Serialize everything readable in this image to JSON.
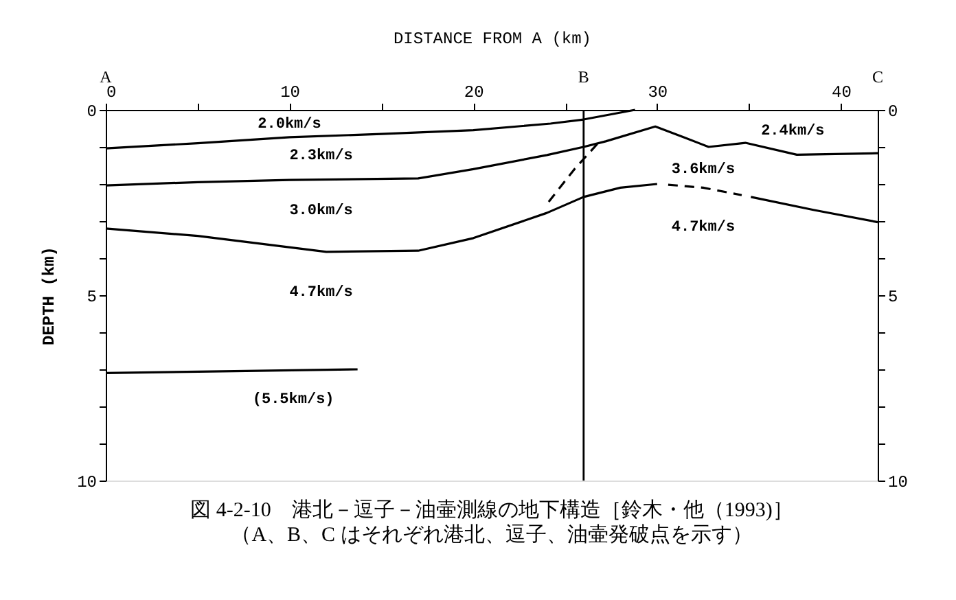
{
  "chart_data": {
    "type": "line",
    "title": "図 4-2-10　港北－逗子－油壷測線の地下構造［鈴木・他（1993)］",
    "subtitle": "（A、B、C はそれぞれ港北、逗子、油壷発破点を示す）",
    "xlabel": "DISTANCE FROM A (km)",
    "ylabel": "DEPTH (km)",
    "xlim": [
      0,
      42
    ],
    "xticks": [
      0,
      {
        "value": 5,
        "label": null
      },
      10,
      {
        "value": 15,
        "label": null
      },
      20,
      {
        "value": 25,
        "label": null
      },
      30,
      {
        "value": 35,
        "label": null
      },
      40
    ],
    "ylim": [
      10,
      0
    ],
    "yticks": [
      0,
      {
        "value": 1,
        "label": null
      },
      {
        "value": 2,
        "label": null
      },
      {
        "value": 3,
        "label": null
      },
      {
        "value": 4,
        "label": null
      },
      5,
      {
        "value": 6,
        "label": null
      },
      {
        "value": 7,
        "label": null
      },
      {
        "value": 8,
        "label": null
      },
      {
        "value": 9,
        "label": null
      },
      10
    ],
    "y2lim": [
      10,
      0
    ],
    "y2ticks": [
      0,
      {
        "value": 1,
        "label": null
      },
      {
        "value": 2,
        "label": null
      },
      {
        "value": 3,
        "label": null
      },
      {
        "value": 4,
        "label": null
      },
      5,
      {
        "value": 6,
        "label": null
      },
      {
        "value": 7,
        "label": null
      },
      {
        "value": 8,
        "label": null
      },
      {
        "value": 9,
        "label": null
      },
      10
    ],
    "grid": false,
    "marker": "none",
    "series": [
      {
        "color": "#000000",
        "line_style": "solid",
        "x": [
          0,
          5,
          10,
          15,
          20,
          24.2,
          26,
          28.8
        ],
        "values": [
          1.04,
          0.9,
          0.74,
          0.65,
          0.55,
          0.37,
          0.26,
          0
        ]
      },
      {
        "color": "#000000",
        "line_style": "solid",
        "x": [
          0,
          5,
          10,
          17,
          20,
          24,
          26,
          27.2,
          29.9,
          31.5,
          32.8,
          34.8,
          37.6,
          42
        ],
        "values": [
          2.04,
          1.95,
          1.89,
          1.85,
          1.6,
          1.22,
          1.0,
          0.85,
          0.45,
          0.75,
          1.0,
          0.89,
          1.21,
          1.17
        ]
      },
      {
        "color": "#000000",
        "line_style": "solid",
        "x": [
          0,
          5,
          12,
          17,
          20,
          24,
          26,
          28,
          30
        ],
        "values": [
          3.2,
          3.4,
          3.83,
          3.8,
          3.46,
          2.78,
          2.35,
          2.1,
          2.0
        ]
      },
      {
        "color": "#000000",
        "line_style": "dashed",
        "x": [
          30.6,
          32.5,
          34.6
        ],
        "values": [
          2.02,
          2.1,
          2.3
        ]
      },
      {
        "color": "#000000",
        "line_style": "solid",
        "x": [
          35.1,
          38.5,
          42
        ],
        "values": [
          2.35,
          2.7,
          3.03
        ]
      },
      {
        "color": "#000000",
        "line_style": "dashed",
        "x": [
          24.1,
          25.5,
          26.8
        ],
        "values": [
          2.48,
          1.6,
          0.89
        ]
      },
      {
        "color": "#000000",
        "line_style": "solid",
        "x": [
          0,
          7,
          13.7
        ],
        "values": [
          7.1,
          7.05,
          7.0
        ]
      }
    ],
    "ref_lines": [
      {
        "axis": "x",
        "value": 26,
        "label": "B"
      }
    ],
    "annotations": [
      "A",
      "C",
      "2.0km/s",
      "2.3km/s",
      "3.0km/s",
      "4.7km/s",
      "(5.5km/s)",
      "2.4km/s",
      "3.6km/s",
      "4.7km/s"
    ]
  }
}
